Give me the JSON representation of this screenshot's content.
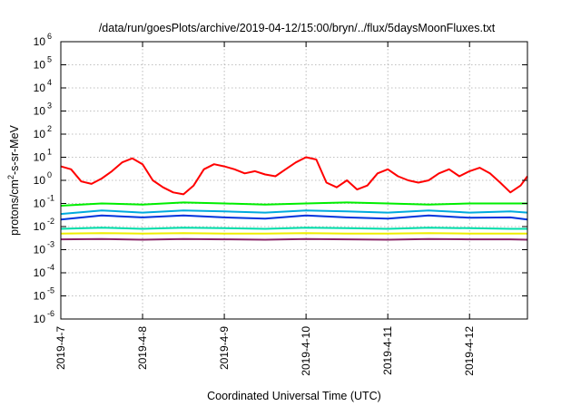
{
  "chart_data": {
    "type": "line",
    "title": "/data/run/goesPlots/archive/2019-04-12/15:00/bryn/../flux/5daysMoonFluxes.txt",
    "xlabel": "Coordinated Universal Time (UTC)",
    "ylabel": {
      "prefix": "protons/cm",
      "sup": "2",
      "suffix": "-s-sr-MeV"
    },
    "yscale": "log",
    "ylim_exponent": [
      -6,
      6
    ],
    "ytick_exponents": [
      "-6",
      "-5",
      "-4",
      "-3",
      "-2",
      "-1",
      "0",
      "1",
      "2",
      "3",
      "4",
      "5",
      "6"
    ],
    "ytick_base": "10",
    "xlim": [
      "2019-04-07T00:00",
      "2019-04-12T17:00"
    ],
    "xticks": [
      {
        "date": "2019-04-07T00:00",
        "label": "2019-4-7"
      },
      {
        "date": "2019-04-08T00:00",
        "label": "2019-4-8"
      },
      {
        "date": "2019-04-09T00:00",
        "label": "2019-4-9"
      },
      {
        "date": "2019-04-10T00:00",
        "label": "2019-4-10"
      },
      {
        "date": "2019-04-11T00:00",
        "label": "2019-4-11"
      },
      {
        "date": "2019-04-12T00:00",
        "label": "2019-4-12"
      }
    ],
    "grid": true,
    "legend": "none",
    "series": [
      {
        "color": "#ff0000",
        "x": [
          "2019-04-07T00:00",
          "2019-04-07T03:00",
          "2019-04-07T06:00",
          "2019-04-07T09:00",
          "2019-04-07T12:00",
          "2019-04-07T15:00",
          "2019-04-07T18:00",
          "2019-04-07T21:00",
          "2019-04-08T00:00",
          "2019-04-08T03:00",
          "2019-04-08T06:00",
          "2019-04-08T09:00",
          "2019-04-08T12:00",
          "2019-04-08T15:00",
          "2019-04-08T18:00",
          "2019-04-08T21:00",
          "2019-04-09T00:00",
          "2019-04-09T03:00",
          "2019-04-09T06:00",
          "2019-04-09T09:00",
          "2019-04-09T12:00",
          "2019-04-09T15:00",
          "2019-04-09T18:00",
          "2019-04-09T21:00",
          "2019-04-10T00:00",
          "2019-04-10T03:00",
          "2019-04-10T06:00",
          "2019-04-10T09:00",
          "2019-04-10T12:00",
          "2019-04-10T15:00",
          "2019-04-10T18:00",
          "2019-04-10T21:00",
          "2019-04-11T00:00",
          "2019-04-11T03:00",
          "2019-04-11T06:00",
          "2019-04-11T09:00",
          "2019-04-11T12:00",
          "2019-04-11T15:00",
          "2019-04-11T18:00",
          "2019-04-11T21:00",
          "2019-04-12T00:00",
          "2019-04-12T03:00",
          "2019-04-12T06:00",
          "2019-04-12T09:00",
          "2019-04-12T12:00",
          "2019-04-12T15:00",
          "2019-04-12T17:00"
        ],
        "y": [
          4,
          3,
          0.9,
          0.7,
          1.2,
          2.5,
          6,
          9,
          5,
          1,
          0.5,
          0.3,
          0.25,
          0.6,
          3,
          5,
          4,
          3,
          2,
          2.5,
          1.8,
          1.5,
          3,
          6,
          10,
          8,
          0.8,
          0.5,
          1,
          0.4,
          0.6,
          2,
          3,
          1.5,
          1,
          0.8,
          1,
          2,
          3,
          1.5,
          2.5,
          3.5,
          2,
          0.8,
          0.3,
          0.6,
          1.5
        ]
      },
      {
        "color": "#00ee00",
        "x": [
          "2019-04-07T00:00",
          "2019-04-07T12:00",
          "2019-04-08T00:00",
          "2019-04-08T12:00",
          "2019-04-09T00:00",
          "2019-04-09T12:00",
          "2019-04-10T00:00",
          "2019-04-10T12:00",
          "2019-04-11T00:00",
          "2019-04-11T12:00",
          "2019-04-12T00:00",
          "2019-04-12T12:00",
          "2019-04-12T17:00"
        ],
        "y": [
          0.08,
          0.1,
          0.09,
          0.11,
          0.1,
          0.09,
          0.1,
          0.11,
          0.1,
          0.09,
          0.1,
          0.1,
          0.1
        ]
      },
      {
        "color": "#00aadd",
        "x": [
          "2019-04-07T00:00",
          "2019-04-07T12:00",
          "2019-04-08T00:00",
          "2019-04-08T12:00",
          "2019-04-09T00:00",
          "2019-04-09T12:00",
          "2019-04-10T00:00",
          "2019-04-10T12:00",
          "2019-04-11T00:00",
          "2019-04-11T12:00",
          "2019-04-12T00:00",
          "2019-04-12T12:00",
          "2019-04-12T17:00"
        ],
        "y": [
          0.035,
          0.05,
          0.04,
          0.05,
          0.045,
          0.04,
          0.05,
          0.045,
          0.04,
          0.05,
          0.04,
          0.045,
          0.04
        ]
      },
      {
        "color": "#0033dd",
        "x": [
          "2019-04-07T00:00",
          "2019-04-07T12:00",
          "2019-04-08T00:00",
          "2019-04-08T12:00",
          "2019-04-09T00:00",
          "2019-04-09T12:00",
          "2019-04-10T00:00",
          "2019-04-10T12:00",
          "2019-04-11T00:00",
          "2019-04-11T12:00",
          "2019-04-12T00:00",
          "2019-04-12T12:00",
          "2019-04-12T17:00"
        ],
        "y": [
          0.02,
          0.03,
          0.025,
          0.03,
          0.025,
          0.022,
          0.03,
          0.025,
          0.022,
          0.03,
          0.024,
          0.025,
          0.02
        ]
      },
      {
        "color": "#00ddaa",
        "x": [
          "2019-04-07T00:00",
          "2019-04-07T12:00",
          "2019-04-08T00:00",
          "2019-04-08T12:00",
          "2019-04-09T00:00",
          "2019-04-09T12:00",
          "2019-04-10T00:00",
          "2019-04-10T12:00",
          "2019-04-11T00:00",
          "2019-04-11T12:00",
          "2019-04-12T00:00",
          "2019-04-12T12:00",
          "2019-04-12T17:00"
        ],
        "y": [
          0.008,
          0.009,
          0.008,
          0.009,
          0.0085,
          0.008,
          0.009,
          0.0085,
          0.008,
          0.009,
          0.0085,
          0.008,
          0.008
        ]
      },
      {
        "color": "#eeee00",
        "x": [
          "2019-04-07T00:00",
          "2019-04-07T12:00",
          "2019-04-08T00:00",
          "2019-04-08T12:00",
          "2019-04-09T00:00",
          "2019-04-09T12:00",
          "2019-04-10T00:00",
          "2019-04-10T12:00",
          "2019-04-11T00:00",
          "2019-04-11T12:00",
          "2019-04-12T00:00",
          "2019-04-12T12:00",
          "2019-04-12T17:00"
        ],
        "y": [
          0.005,
          0.0052,
          0.005,
          0.0052,
          0.005,
          0.005,
          0.0052,
          0.005,
          0.005,
          0.0052,
          0.005,
          0.005,
          0.005
        ]
      },
      {
        "color": "#882266",
        "x": [
          "2019-04-07T00:00",
          "2019-04-07T12:00",
          "2019-04-08T00:00",
          "2019-04-08T12:00",
          "2019-04-09T00:00",
          "2019-04-09T12:00",
          "2019-04-10T00:00",
          "2019-04-10T12:00",
          "2019-04-11T00:00",
          "2019-04-11T12:00",
          "2019-04-12T00:00",
          "2019-04-12T12:00",
          "2019-04-12T17:00"
        ],
        "y": [
          0.0028,
          0.0029,
          0.0027,
          0.0029,
          0.0028,
          0.0027,
          0.0029,
          0.0028,
          0.0027,
          0.0029,
          0.0028,
          0.0028,
          0.0027
        ]
      }
    ]
  }
}
